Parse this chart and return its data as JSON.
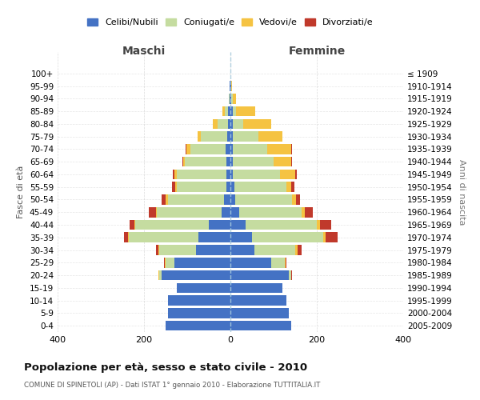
{
  "age_groups": [
    "0-4",
    "5-9",
    "10-14",
    "15-19",
    "20-24",
    "25-29",
    "30-34",
    "35-39",
    "40-44",
    "45-49",
    "50-54",
    "55-59",
    "60-64",
    "65-69",
    "70-74",
    "75-79",
    "80-84",
    "85-89",
    "90-94",
    "95-99",
    "100+"
  ],
  "birth_years": [
    "2005-2009",
    "2000-2004",
    "1995-1999",
    "1990-1994",
    "1985-1989",
    "1980-1984",
    "1975-1979",
    "1970-1974",
    "1965-1969",
    "1960-1964",
    "1955-1959",
    "1950-1954",
    "1945-1949",
    "1940-1944",
    "1935-1939",
    "1930-1934",
    "1925-1929",
    "1920-1924",
    "1915-1919",
    "1910-1914",
    "≤ 1909"
  ],
  "maschi": {
    "celibi": [
      150,
      145,
      145,
      125,
      160,
      130,
      80,
      75,
      50,
      20,
      15,
      10,
      10,
      10,
      12,
      8,
      5,
      5,
      2,
      1,
      0
    ],
    "coniugati": [
      0,
      0,
      0,
      0,
      5,
      20,
      85,
      160,
      170,
      150,
      130,
      115,
      115,
      95,
      80,
      60,
      25,
      8,
      2,
      1,
      0
    ],
    "vedovi": [
      0,
      0,
      0,
      0,
      1,
      2,
      2,
      2,
      2,
      3,
      5,
      3,
      5,
      5,
      10,
      8,
      10,
      5,
      0,
      0,
      0
    ],
    "divorziati": [
      0,
      0,
      0,
      0,
      1,
      2,
      5,
      10,
      12,
      15,
      10,
      8,
      3,
      2,
      2,
      0,
      0,
      0,
      0,
      0,
      0
    ]
  },
  "femmine": {
    "nubili": [
      140,
      135,
      130,
      120,
      135,
      95,
      55,
      50,
      35,
      20,
      12,
      10,
      5,
      5,
      5,
      5,
      5,
      5,
      2,
      1,
      0
    ],
    "coniugate": [
      0,
      0,
      0,
      0,
      5,
      30,
      95,
      165,
      165,
      145,
      130,
      120,
      110,
      95,
      80,
      60,
      25,
      8,
      3,
      1,
      0
    ],
    "vedove": [
      0,
      0,
      0,
      0,
      1,
      2,
      5,
      5,
      8,
      8,
      10,
      10,
      35,
      40,
      55,
      55,
      65,
      45,
      8,
      2,
      0
    ],
    "divorziate": [
      0,
      0,
      0,
      0,
      1,
      3,
      10,
      28,
      25,
      18,
      10,
      8,
      3,
      2,
      2,
      0,
      0,
      0,
      0,
      0,
      0
    ]
  },
  "colors": {
    "celibi": "#4472c4",
    "coniugati": "#c5dca0",
    "vedovi": "#f5c342",
    "divorziati": "#c0392b"
  },
  "title": "Popolazione per età, sesso e stato civile - 2010",
  "subtitle": "COMUNE DI SPINETOLI (AP) - Dati ISTAT 1° gennaio 2010 - Elaborazione TUTTITALIA.IT",
  "ylabel_left": "Fasce di età",
  "ylabel_right": "Anni di nascita",
  "xlabel_left": "Maschi",
  "xlabel_right": "Femmine",
  "xlim": 400,
  "background_color": "#ffffff",
  "grid_color": "#cccccc"
}
